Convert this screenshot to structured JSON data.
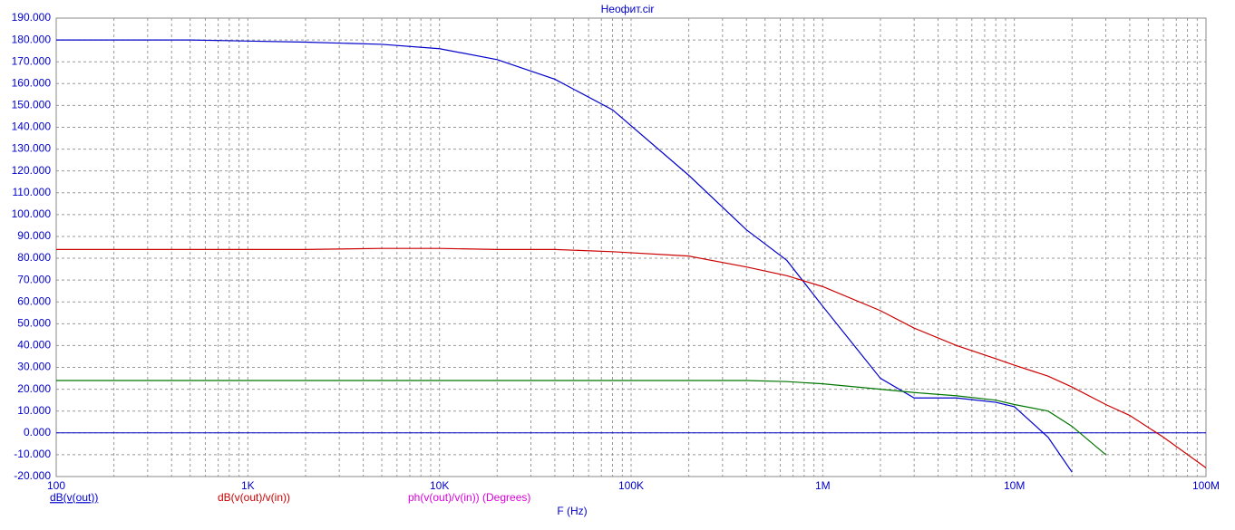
{
  "chart_data": {
    "type": "line",
    "title": "Неофит.cir",
    "xlabel": "F (Hz)",
    "xlog": true,
    "grid": true,
    "zero_line": true,
    "x": [
      100,
      200,
      500,
      1000,
      2000,
      5000,
      10000,
      20000,
      40000,
      80000,
      200000,
      400000,
      650000,
      1000000,
      2000000,
      3000000,
      5000000,
      8000000,
      10000000,
      15000000,
      20000000,
      30000000,
      40000000,
      60000000,
      100000000
    ],
    "xlim": [
      100,
      100000000
    ],
    "xticks": [
      {
        "value": 100,
        "label": "100"
      },
      {
        "value": 1000,
        "label": "1K"
      },
      {
        "value": 10000,
        "label": "10K"
      },
      {
        "value": 100000,
        "label": "100K"
      },
      {
        "value": 1000000,
        "label": "1M"
      },
      {
        "value": 10000000,
        "label": "10M"
      },
      {
        "value": 100000000,
        "label": "100M"
      }
    ],
    "ylim": [
      -20,
      190
    ],
    "yticks": [
      {
        "value": -20,
        "label": "-20.000"
      },
      {
        "value": -10,
        "label": "-10.000"
      },
      {
        "value": 0,
        "label": "0.000"
      },
      {
        "value": 10,
        "label": "10.000"
      },
      {
        "value": 20,
        "label": "20.000"
      },
      {
        "value": 30,
        "label": "30.000"
      },
      {
        "value": 40,
        "label": "40.000"
      },
      {
        "value": 50,
        "label": "50.000"
      },
      {
        "value": 60,
        "label": "60.000"
      },
      {
        "value": 70,
        "label": "70.000"
      },
      {
        "value": 80,
        "label": "80.000"
      },
      {
        "value": 90,
        "label": "90.000"
      },
      {
        "value": 100,
        "label": "100.000"
      },
      {
        "value": 110,
        "label": "110.000"
      },
      {
        "value": 120,
        "label": "120.000"
      },
      {
        "value": 130,
        "label": "130.000"
      },
      {
        "value": 140,
        "label": "140.000"
      },
      {
        "value": 150,
        "label": "150.000"
      },
      {
        "value": 160,
        "label": "160.000"
      },
      {
        "value": 170,
        "label": "170.000"
      },
      {
        "value": 180,
        "label": "180.000"
      },
      {
        "value": 190,
        "label": "190.000"
      }
    ],
    "series": [
      {
        "name": "dB(v(out))",
        "color": "#0000cc",
        "values": [
          180,
          180,
          180,
          179.5,
          179,
          178,
          176,
          171,
          162,
          148,
          118,
          93,
          79,
          58,
          25,
          16,
          16,
          14,
          12,
          -2,
          -18,
          null,
          null,
          null,
          null
        ]
      },
      {
        "name": "dB(v(out)/v(in))",
        "color": "#cc0000",
        "values": [
          84,
          84,
          84,
          84,
          84,
          84.5,
          84.5,
          84,
          84,
          83,
          81,
          76,
          72,
          67,
          56,
          48,
          40,
          34,
          31,
          26,
          21,
          13,
          8,
          -2,
          -16
        ]
      },
      {
        "name": "ph(v(out)/v(in)) (Degrees)",
        "color": "#dd00dd",
        "values": [
          null,
          null,
          null,
          null,
          null,
          null,
          null,
          null,
          null,
          null,
          null,
          null,
          null,
          null,
          null,
          null,
          null,
          null,
          null,
          null,
          null,
          null,
          null,
          null,
          null
        ]
      },
      {
        "name": null,
        "color": "#007700",
        "values": [
          24,
          24,
          24,
          24,
          24,
          24,
          24,
          24,
          24,
          24,
          24,
          24,
          23.5,
          22.5,
          20,
          18.5,
          17,
          15,
          13,
          10,
          3,
          -10,
          null,
          null,
          null
        ]
      }
    ]
  }
}
